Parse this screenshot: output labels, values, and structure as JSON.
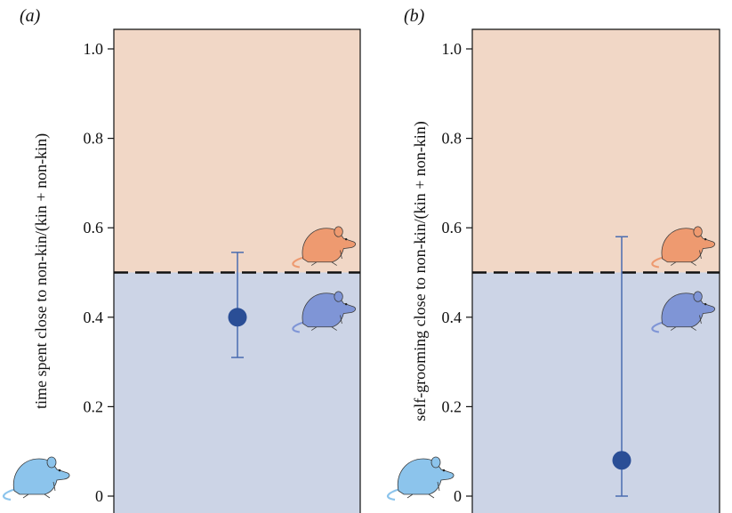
{
  "chart_data": [
    {
      "type": "scatter",
      "panel_label": "(a)",
      "ylabel": "time spent close to non-kin/(kin + non-kin)",
      "ylim": [
        0,
        1.05
      ],
      "yticks": [
        0,
        0.2,
        0.4,
        0.6,
        0.8,
        1.0
      ],
      "ytick_labels": [
        "0",
        "0.2",
        "0.4",
        "0.6",
        "0.8",
        "1.0"
      ],
      "reference_line": 0.5,
      "grid": false,
      "points": [
        {
          "y": 0.4,
          "err_low": 0.31,
          "err_high": 0.545
        }
      ]
    },
    {
      "type": "scatter",
      "panel_label": "(b)",
      "ylabel": "self-grooming close to non-kin/(kin + non-kin)",
      "ylim": [
        0,
        1.05
      ],
      "yticks": [
        0,
        0.2,
        0.4,
        0.6,
        0.8,
        1.0
      ],
      "ytick_labels": [
        "0",
        "0.2",
        "0.4",
        "0.6",
        "0.8",
        "1.0"
      ],
      "reference_line": 0.5,
      "grid": false,
      "points": [
        {
          "y": 0.08,
          "err_low": 0.0,
          "err_high": 0.58
        }
      ]
    }
  ],
  "colors": {
    "upper_region": "#f1d7c6",
    "lower_region": "#ccd4e6",
    "point": "#2a4e96",
    "errorbar": "#4a6cb0",
    "orange_rat": "#ee9a70",
    "blue_rat": "#7f95d6",
    "light_blue_rat": "#8cc4ec"
  },
  "icons": [
    "orange-rat-icon",
    "blue-rat-icon",
    "light-blue-rat-icon"
  ]
}
